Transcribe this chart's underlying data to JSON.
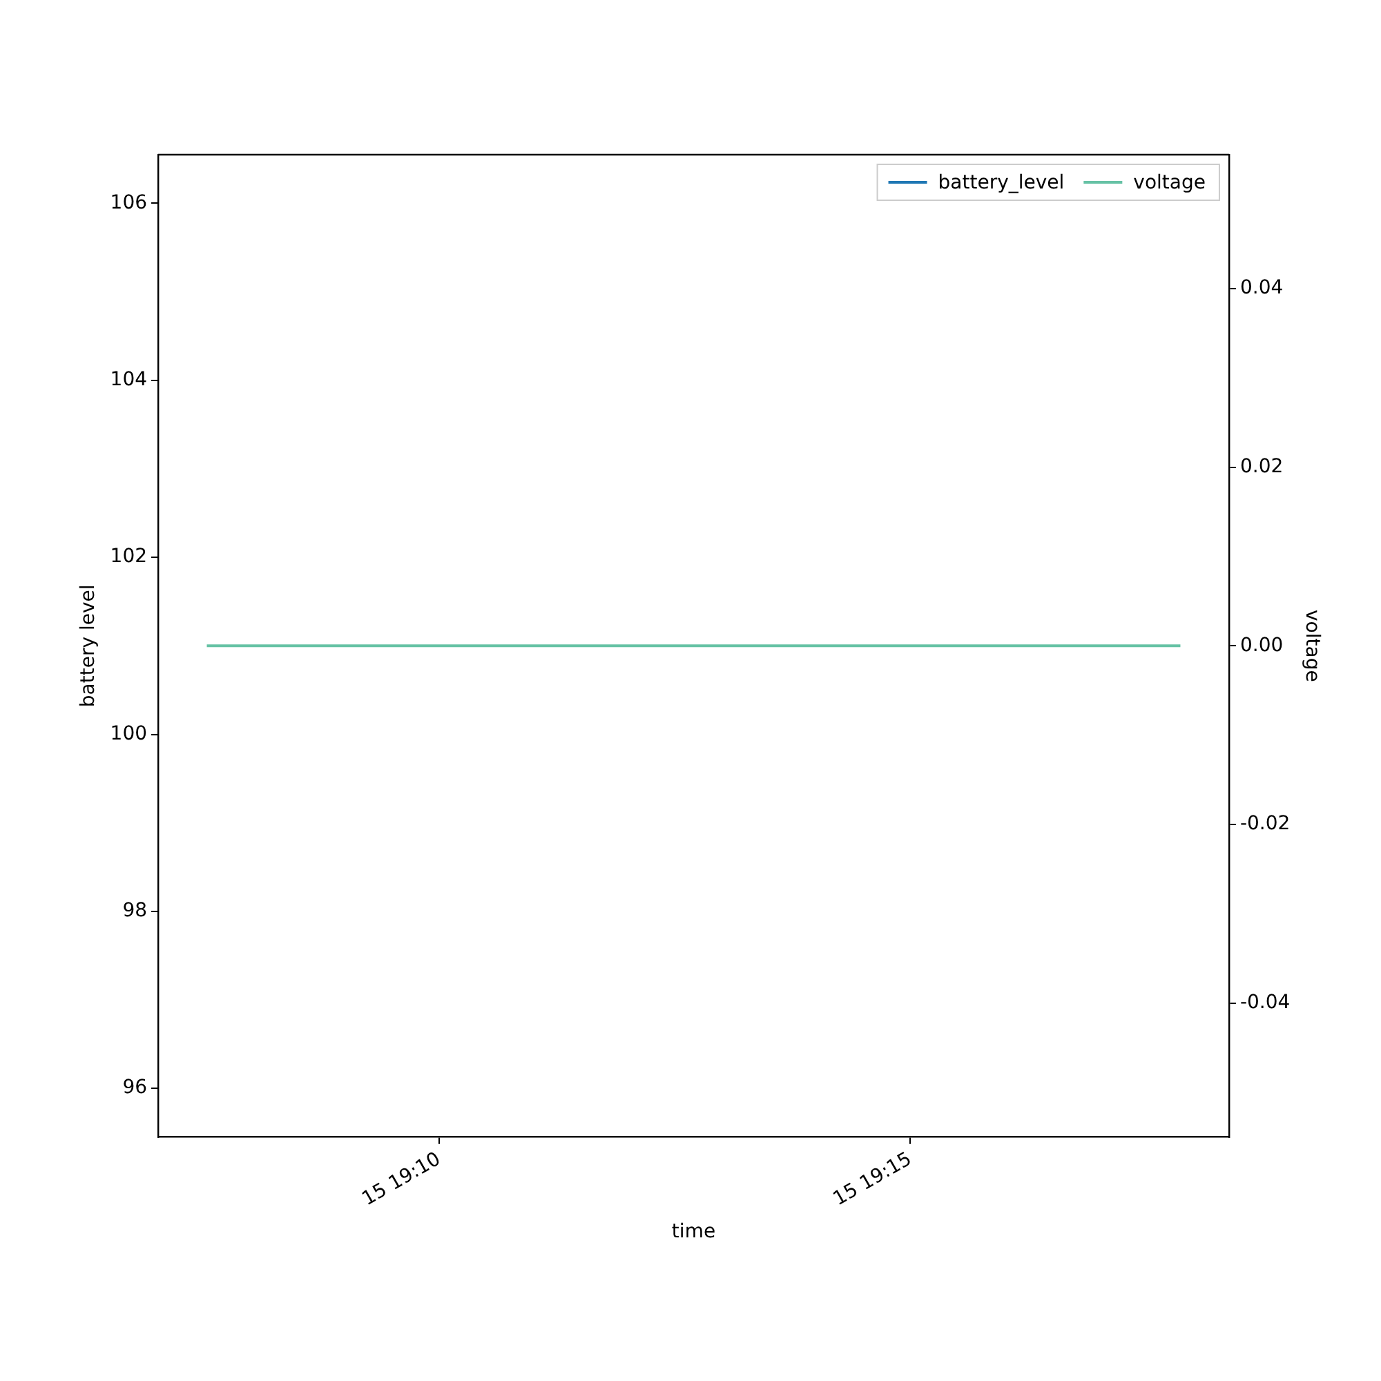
{
  "chart_data": {
    "type": "line",
    "xlabel": "time",
    "ylabel": "battery level",
    "y2label": "voltage",
    "x": [
      "--01-15T19:07:32",
      "--01-15T19:17:52"
    ],
    "series": [
      {
        "name": "battery_level",
        "color": "#1f77b4",
        "values": [
          null,
          null
        ]
      },
      {
        "name": "voltage",
        "color": "#66c2a5",
        "values": [
          0,
          0
        ],
        "axis": "y2"
      }
    ],
    "xlim": [
      "--01-15T19:07:01",
      "--01-15T19:18:23"
    ],
    "xticks": [
      {
        "value": "--01-15T19:10",
        "label": "15 19:10"
      },
      {
        "value": "--01-15T19:15",
        "label": "15 19:15"
      }
    ],
    "ylim": [
      95.45,
      106.55
    ],
    "yticks": [
      96,
      98,
      100,
      102,
      104,
      106
    ],
    "y2lim": [
      -0.055,
      0.055
    ],
    "y2ticks": [
      -0.04,
      -0.02,
      {
        "value": 0,
        "label": "0.00"
      },
      0.02,
      0.04
    ],
    "grid": false,
    "legend": "top right",
    "marker": "none",
    "line_style": "solid"
  }
}
